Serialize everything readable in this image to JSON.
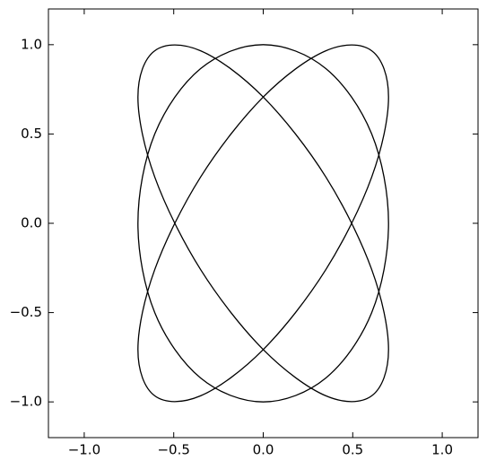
{
  "chart_data": {
    "type": "closed-curve",
    "x": [
      0,
      0.35,
      0.606,
      0.7,
      0.606,
      0.35,
      0,
      -0.35,
      -0.606,
      -0.7,
      -0.606,
      -0.35
    ],
    "series": [
      {
        "color": "#000000",
        "values": [
          1,
          0.866,
          0.5,
          0,
          -0.5,
          -0.866,
          -1,
          -0.866,
          -0.5,
          0,
          0.5,
          0.866
        ]
      },
      {
        "color": "#000000",
        "values": [
          0.707,
          0.966,
          0.966,
          0.707,
          0.259,
          -0.259,
          -0.707,
          -0.966,
          -0.966,
          -0.707,
          -0.259,
          0.259
        ]
      },
      {
        "color": "#000000",
        "values": [
          0.707,
          0.259,
          -0.259,
          -0.707,
          -0.966,
          -0.966,
          -0.707,
          -0.259,
          0.259,
          0.707,
          0.966,
          0.966
        ]
      }
    ],
    "xlim": [
      -1.2,
      1.2
    ],
    "ylim": [
      -1.2,
      1.2
    ],
    "xticks": [
      {
        "value": -1,
        "label": "−1.0"
      },
      {
        "value": -0.5,
        "label": "−0.5"
      },
      {
        "value": 0,
        "label": "0.0"
      },
      {
        "value": 0.5,
        "label": "0.5"
      },
      {
        "value": 1,
        "label": "1.0"
      }
    ],
    "yticks": [
      {
        "value": -1,
        "label": "−1.0"
      },
      {
        "value": -0.5,
        "label": "−0.5"
      },
      {
        "value": 0,
        "label": "0.0"
      },
      {
        "value": 0.5,
        "label": "0.5"
      },
      {
        "value": 1,
        "label": "1.0"
      }
    ]
  }
}
